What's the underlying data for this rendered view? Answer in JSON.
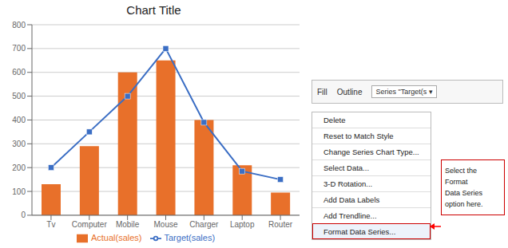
{
  "chart_data": {
    "type": "bar",
    "title": "Chart Title",
    "categories": [
      "Tv",
      "Computer",
      "Mobile",
      "Mouse",
      "Charger",
      "Laptop",
      "Router"
    ],
    "series": [
      {
        "name": "Actual(sales)",
        "type": "bar",
        "color": "#E8702A",
        "values": [
          130,
          290,
          600,
          650,
          400,
          210,
          95
        ]
      },
      {
        "name": "Target(sales)",
        "type": "line",
        "color": "#3B6EC4",
        "marker": "square",
        "values": [
          200,
          350,
          500,
          700,
          390,
          185,
          150
        ]
      }
    ],
    "ylim": [
      0,
      800
    ],
    "yticks": [
      0,
      100,
      200,
      300,
      400,
      500,
      600,
      700,
      800
    ],
    "grid": true,
    "legend": "bottom",
    "annotations": [
      "Select the Format\nData Series\noption here.",
      "Fill",
      "Outline",
      "Series \"Target(s ▾",
      "Delete",
      "Reset to Match Style",
      "Change Series Chart Type...",
      "Select Data...",
      "3-D Rotation...",
      "Add Data Labels",
      "Add Trendline...",
      "Format Data Series..."
    ]
  }
}
